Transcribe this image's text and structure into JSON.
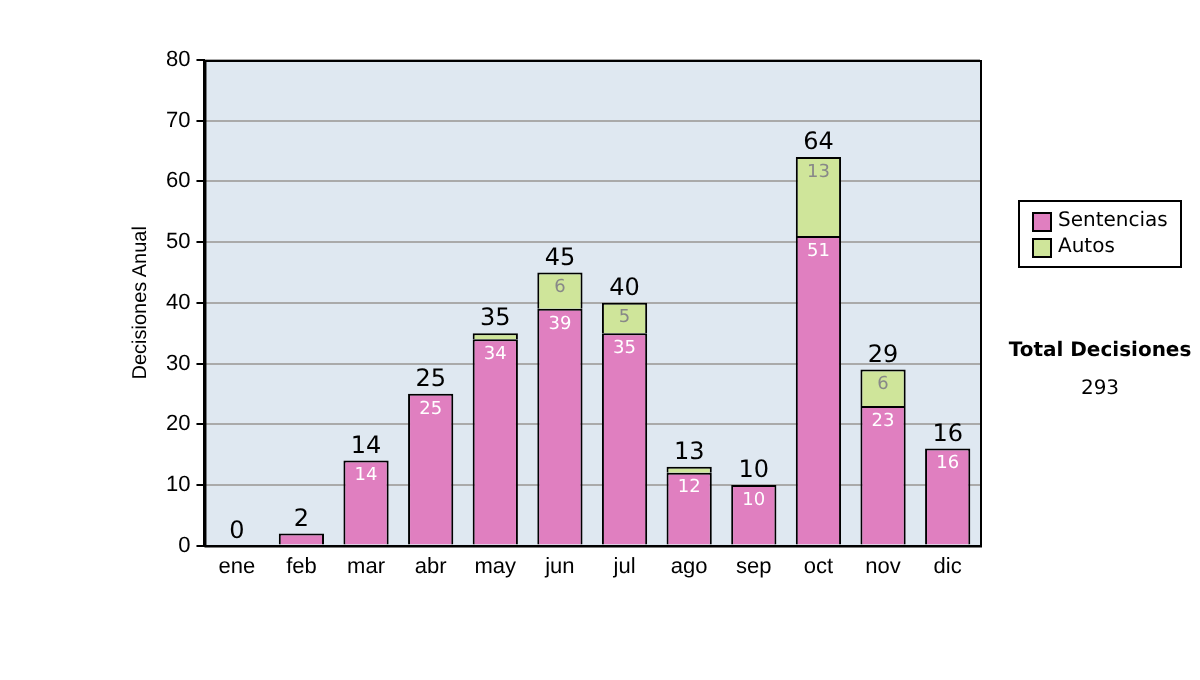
{
  "chart_data": {
    "type": "bar",
    "stacked": true,
    "ylabel": "Decisiones Anual",
    "categories": [
      "ene",
      "feb",
      "mar",
      "abr",
      "may",
      "jun",
      "jul",
      "ago",
      "sep",
      "oct",
      "nov",
      "dic"
    ],
    "series": [
      {
        "name": "Sentencias",
        "color": "#e07fc0",
        "values": [
          0,
          2,
          14,
          25,
          34,
          39,
          35,
          12,
          10,
          51,
          23,
          16
        ],
        "value_labels": [
          null,
          null,
          "14",
          "25",
          "34",
          "39",
          "35",
          "12",
          "10",
          "51",
          "23",
          "16"
        ]
      },
      {
        "name": "Autos",
        "color": "#cfe59a",
        "values": [
          0,
          0,
          0,
          0,
          1,
          6,
          5,
          1,
          0,
          13,
          6,
          0
        ],
        "value_labels": [
          null,
          null,
          null,
          null,
          null,
          "6",
          "5",
          null,
          null,
          "13",
          "6",
          null
        ]
      }
    ],
    "totals": [
      "0",
      "2",
      "14",
      "25",
      "35",
      "45",
      "40",
      "13",
      "10",
      "64",
      "29",
      "16"
    ],
    "ylim": [
      0,
      80
    ],
    "yticks": [
      0,
      10,
      20,
      30,
      40,
      50,
      60,
      70,
      80
    ],
    "grid": "y",
    "legend": "right",
    "annotations": [
      "Total Decisiones",
      "293"
    ]
  }
}
